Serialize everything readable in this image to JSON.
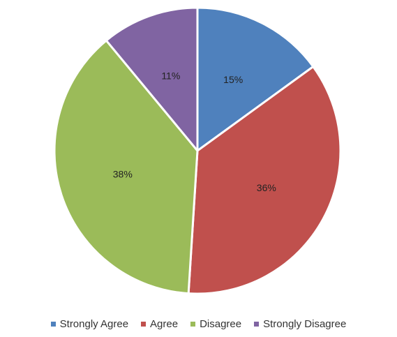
{
  "chart_data": {
    "type": "pie",
    "categories": [
      "Strongly Agree",
      "Agree",
      "Disagree",
      "Strongly Disagree"
    ],
    "values": [
      15,
      36,
      38,
      11
    ],
    "labels": [
      "15%",
      "36%",
      "38%",
      "11%"
    ],
    "colors": [
      "#4f81bd",
      "#c0504d",
      "#9bbb59",
      "#8064a2"
    ],
    "title": "",
    "legend_position": "bottom",
    "start_angle_deg": 0,
    "direction": "clockwise"
  }
}
